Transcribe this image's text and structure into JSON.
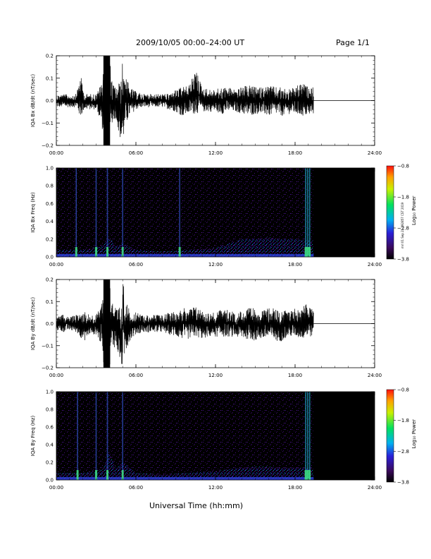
{
  "header": {
    "title": "2009/10/05   00:00–24:00 UT",
    "page": "Page 1/1"
  },
  "side_note": "mrl 01 Sep 21 092857 CST 2019",
  "footer": {
    "xlabel": "Universal Time (hh:mm)"
  },
  "colors": {
    "trace": "#000000",
    "background": "#ffffff",
    "no_data": "#000000"
  },
  "chart_data": [
    {
      "type": "line",
      "ylabel": "IQA Bx dB/dt (nT/sec)",
      "xlim": [
        0,
        24
      ],
      "ylim": [
        -0.2,
        0.2
      ],
      "x_ticks": [
        "00:00",
        "06:00",
        "12:00",
        "18:00",
        "24:00"
      ],
      "y_ticks": [
        "0.2",
        "0.1",
        "0.0",
        "−0.1",
        "−0.2"
      ],
      "y_tick_values": [
        0.2,
        0.1,
        0.0,
        -0.1,
        -0.2
      ],
      "data_end_hour": 19.4,
      "envelope": {
        "x": [
          0,
          0.5,
          1,
          1.5,
          1.8,
          2.1,
          2.5,
          3.0,
          3.4,
          3.6,
          3.8,
          4.0,
          4.2,
          4.5,
          4.9,
          5.0,
          5.2,
          5.5,
          6.0,
          6.5,
          7.0,
          7.5,
          8.0,
          8.5,
          9.0,
          9.5,
          10.0,
          10.5,
          11.0,
          11.5,
          12.0,
          12.5,
          13.0,
          13.5,
          14.0,
          14.5,
          15.0,
          15.5,
          16.0,
          16.5,
          17.0,
          17.5,
          18.0,
          18.5,
          19.0,
          19.4
        ],
        "upper": [
          0.025,
          0.03,
          0.025,
          0.03,
          0.12,
          0.03,
          0.03,
          0.03,
          0.08,
          0.2,
          0.2,
          0.2,
          0.08,
          0.06,
          0.1,
          0.2,
          0.12,
          0.06,
          0.04,
          0.03,
          0.03,
          0.03,
          0.03,
          0.03,
          0.05,
          0.06,
          0.07,
          0.14,
          0.06,
          0.05,
          0.05,
          0.06,
          0.06,
          0.05,
          0.06,
          0.07,
          0.06,
          0.06,
          0.07,
          0.06,
          0.06,
          0.05,
          0.06,
          0.08,
          0.06,
          0.06
        ],
        "lower": [
          -0.03,
          -0.03,
          -0.03,
          -0.03,
          -0.08,
          -0.04,
          -0.04,
          -0.04,
          -0.1,
          -0.2,
          -0.2,
          -0.2,
          -0.1,
          -0.08,
          -0.2,
          -0.2,
          -0.12,
          -0.07,
          -0.04,
          -0.03,
          -0.03,
          -0.03,
          -0.03,
          -0.04,
          -0.05,
          -0.07,
          -0.06,
          -0.06,
          -0.05,
          -0.05,
          -0.05,
          -0.06,
          -0.05,
          -0.05,
          -0.06,
          -0.07,
          -0.06,
          -0.06,
          -0.07,
          -0.06,
          -0.07,
          -0.06,
          -0.06,
          -0.07,
          -0.07,
          -0.06
        ]
      }
    },
    {
      "type": "heatmap",
      "ylabel": "IQA Bx Freq (Hz)",
      "xlim": [
        0,
        24
      ],
      "ylim": [
        0.0,
        1.0
      ],
      "x_ticks": [
        "00:00",
        "06:00",
        "12:00",
        "18:00",
        "24:00"
      ],
      "y_ticks": [
        "1.0",
        "0.8",
        "0.6",
        "0.4",
        "0.2",
        "0.0"
      ],
      "y_tick_values": [
        1.0,
        0.8,
        0.6,
        0.4,
        0.2,
        0.0
      ],
      "data_end_hour": 19.4,
      "colorbar": {
        "label": "Log₁₀ Power",
        "min": -3.8,
        "max": -0.8,
        "ticks": [
          "−0.8",
          "−1.8",
          "−2.8",
          "−3.8"
        ],
        "tick_values": [
          -0.8,
          -1.8,
          -2.8,
          -3.8
        ]
      },
      "bright_bands_hour": [
        1.5,
        3.0,
        3.85,
        5.0,
        9.3,
        18.8,
        18.95,
        19.1
      ],
      "lowfreq_activity": {
        "x": [
          0,
          2,
          3.5,
          4.0,
          4.5,
          5.0,
          6.0,
          8.0,
          10.0,
          12.0,
          13.0,
          14.0,
          15.0,
          16.0,
          17.0,
          18.0,
          19.0,
          19.4
        ],
        "height_hz": [
          0.08,
          0.08,
          0.12,
          0.22,
          0.12,
          0.15,
          0.08,
          0.06,
          0.08,
          0.1,
          0.15,
          0.2,
          0.2,
          0.22,
          0.2,
          0.2,
          0.18,
          0.18
        ]
      }
    },
    {
      "type": "line",
      "ylabel": "IQA By dB/dt (nT/sec)",
      "xlim": [
        0,
        24
      ],
      "ylim": [
        -0.2,
        0.2
      ],
      "x_ticks": [
        "00:00",
        "06:00",
        "12:00",
        "18:00",
        "24:00"
      ],
      "y_ticks": [
        "0.2",
        "0.1",
        "0.0",
        "−0.1",
        "−0.2"
      ],
      "y_tick_values": [
        0.2,
        0.1,
        0.0,
        -0.1,
        -0.2
      ],
      "data_end_hour": 19.4,
      "envelope": {
        "x": [
          0,
          0.5,
          1,
          1.5,
          1.8,
          2.1,
          2.5,
          3.0,
          3.4,
          3.6,
          3.8,
          4.0,
          4.2,
          4.5,
          4.9,
          5.0,
          5.2,
          5.5,
          6.0,
          6.5,
          7.0,
          7.5,
          8.0,
          8.5,
          9.0,
          9.5,
          10.0,
          10.5,
          11.0,
          11.5,
          12.0,
          12.5,
          13.0,
          13.5,
          14.0,
          14.5,
          15.0,
          15.5,
          16.0,
          16.5,
          17.0,
          17.5,
          18.0,
          18.5,
          19.0,
          19.4
        ],
        "upper": [
          0.03,
          0.04,
          0.03,
          0.04,
          0.05,
          0.06,
          0.04,
          0.04,
          0.1,
          0.2,
          0.2,
          0.2,
          0.12,
          0.07,
          0.08,
          0.2,
          0.12,
          0.06,
          0.05,
          0.04,
          0.04,
          0.04,
          0.04,
          0.05,
          0.06,
          0.07,
          0.07,
          0.08,
          0.06,
          0.05,
          0.05,
          0.07,
          0.06,
          0.05,
          0.06,
          0.07,
          0.07,
          0.06,
          0.07,
          0.07,
          0.06,
          0.06,
          0.07,
          0.07,
          0.1,
          0.06
        ],
        "lower": [
          -0.03,
          -0.04,
          -0.03,
          -0.04,
          -0.06,
          -0.08,
          -0.05,
          -0.05,
          -0.1,
          -0.2,
          -0.2,
          -0.2,
          -0.12,
          -0.1,
          -0.2,
          -0.2,
          -0.14,
          -0.08,
          -0.05,
          -0.04,
          -0.04,
          -0.04,
          -0.04,
          -0.05,
          -0.06,
          -0.07,
          -0.07,
          -0.06,
          -0.07,
          -0.06,
          -0.06,
          -0.06,
          -0.06,
          -0.06,
          -0.07,
          -0.07,
          -0.08,
          -0.07,
          -0.07,
          -0.08,
          -0.08,
          -0.06,
          -0.06,
          -0.07,
          -0.06,
          -0.06
        ]
      }
    },
    {
      "type": "heatmap",
      "ylabel": "IQA By Freq (Hz)",
      "xlim": [
        0,
        24
      ],
      "ylim": [
        0.0,
        1.0
      ],
      "x_ticks": [
        "00:00",
        "06:00",
        "12:00",
        "18:00",
        "24:00"
      ],
      "y_ticks": [
        "1.0",
        "0.8",
        "0.6",
        "0.4",
        "0.2",
        "0.0"
      ],
      "y_tick_values": [
        1.0,
        0.8,
        0.6,
        0.4,
        0.2,
        0.0
      ],
      "data_end_hour": 19.4,
      "colorbar": {
        "label": "Log₁₀ Power",
        "min": -3.8,
        "max": -0.8,
        "ticks": [
          "−0.8",
          "−1.8",
          "−2.8",
          "−3.8"
        ],
        "tick_values": [
          -0.8,
          -1.8,
          -2.8,
          -3.8
        ]
      },
      "bright_bands_hour": [
        1.6,
        3.0,
        3.85,
        5.0,
        18.8,
        18.95,
        19.1
      ],
      "lowfreq_activity": {
        "x": [
          0,
          2,
          3.5,
          4.0,
          4.5,
          5.0,
          6.0,
          8.0,
          10.0,
          12.0,
          13.0,
          14.0,
          15.0,
          16.0,
          17.0,
          18.0,
          19.0,
          19.4
        ],
        "height_hz": [
          0.08,
          0.08,
          0.12,
          0.32,
          0.12,
          0.2,
          0.08,
          0.06,
          0.08,
          0.1,
          0.12,
          0.14,
          0.15,
          0.15,
          0.14,
          0.14,
          0.14,
          0.14
        ]
      }
    }
  ]
}
